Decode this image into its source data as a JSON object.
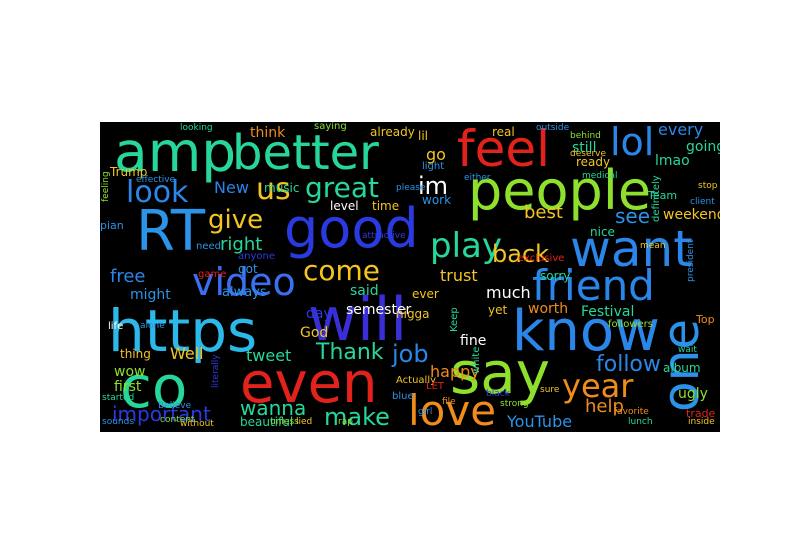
{
  "words": [
    {
      "text": "amp",
      "color": "#27d79a"
    },
    {
      "text": "better",
      "color": "#27d79a"
    },
    {
      "text": "feel",
      "color": "#e3221b"
    },
    {
      "text": "lol",
      "color": "#2a86e8"
    },
    {
      "text": "people",
      "color": "#8ee02c"
    },
    {
      "text": "good",
      "color": "#2b3ae0"
    },
    {
      "text": "RT",
      "color": "#2b93e8"
    },
    {
      "text": "want",
      "color": "#2a86e8"
    },
    {
      "text": "look",
      "color": "#2a86e8"
    },
    {
      "text": "us",
      "color": "#f2c522"
    },
    {
      "text": "great",
      "color": "#27d79a"
    },
    {
      "text": "im",
      "color": "#ffffff"
    },
    {
      "text": "give",
      "color": "#f2c522"
    },
    {
      "text": "play",
      "color": "#27d79a"
    },
    {
      "text": "video",
      "color": "#3b6ef0"
    },
    {
      "text": "friend",
      "color": "#2a86e8"
    },
    {
      "text": "come",
      "color": "#f2c522"
    },
    {
      "text": "back",
      "color": "#f2c522"
    },
    {
      "text": "https",
      "color": "#2cb8e8"
    },
    {
      "text": "will",
      "color": "#3a2fd6"
    },
    {
      "text": "know",
      "color": "#2a86e8"
    },
    {
      "text": "one",
      "color": "#2b93e8"
    },
    {
      "text": "co",
      "color": "#27d79a"
    },
    {
      "text": "even",
      "color": "#e3221b"
    },
    {
      "text": "say",
      "color": "#8ee02c"
    },
    {
      "text": "love",
      "color": "#f08c1c"
    },
    {
      "text": "year",
      "color": "#f08c1c"
    },
    {
      "text": "job",
      "color": "#2a86e8"
    },
    {
      "text": "Thank",
      "color": "#27d79a"
    },
    {
      "text": "make",
      "color": "#27d79a"
    },
    {
      "text": "wanna",
      "color": "#27d79a"
    },
    {
      "text": "important",
      "color": "#2b3ae0"
    },
    {
      "text": "follow",
      "color": "#2a86e8"
    },
    {
      "text": "help",
      "color": "#f08c1c"
    },
    {
      "text": "happy",
      "color": "#f08c1c"
    },
    {
      "text": "YouTube",
      "color": "#2b93e8"
    },
    {
      "text": "free",
      "color": "#2a86e8"
    },
    {
      "text": "right",
      "color": "#27d79a"
    },
    {
      "text": "said",
      "color": "#27d79a"
    },
    {
      "text": "much",
      "color": "#ffffff"
    },
    {
      "text": "see",
      "color": "#2b93e8"
    },
    {
      "text": "best",
      "color": "#f2c522"
    },
    {
      "text": "trust",
      "color": "#f2c522"
    },
    {
      "text": "New",
      "color": "#2a86e8"
    },
    {
      "text": "go",
      "color": "#f2c522"
    },
    {
      "text": "think",
      "color": "#f08c1c"
    },
    {
      "text": "already",
      "color": "#f2c522"
    },
    {
      "text": "still",
      "color": "#27d79a"
    },
    {
      "text": "every",
      "color": "#2a86e8"
    },
    {
      "text": "going",
      "color": "#27d79a"
    },
    {
      "text": "lmao",
      "color": "#27d79a"
    },
    {
      "text": "Festival",
      "color": "#27d79a"
    },
    {
      "text": "worth",
      "color": "#f08c1c"
    },
    {
      "text": "weekend",
      "color": "#f2c522"
    },
    {
      "text": "semester",
      "color": "#ffffff"
    },
    {
      "text": "Well",
      "color": "#f2c522"
    },
    {
      "text": "tweet",
      "color": "#27d79a"
    },
    {
      "text": "thing",
      "color": "#f2c522"
    },
    {
      "text": "wow",
      "color": "#8ee02c"
    },
    {
      "text": "first",
      "color": "#8ee02c"
    },
    {
      "text": "always",
      "color": "#2b93e8"
    },
    {
      "text": "might",
      "color": "#2b93e8"
    },
    {
      "text": "day",
      "color": "#2b3ae0"
    },
    {
      "text": "God",
      "color": "#f2c522"
    },
    {
      "text": "beautiful",
      "color": "#27d79a"
    },
    {
      "text": "fine",
      "color": "#ffffff"
    },
    {
      "text": "yet",
      "color": "#f2c522"
    },
    {
      "text": "album",
      "color": "#27d79a"
    },
    {
      "text": "ugly",
      "color": "#8ee02c"
    },
    {
      "text": "Top",
      "color": "#f08c1c"
    },
    {
      "text": "trade",
      "color": "#e3221b"
    },
    {
      "text": "sorry",
      "color": "#27d79a"
    },
    {
      "text": "ever",
      "color": "#f2c522"
    },
    {
      "text": "nigga",
      "color": "#f2c522"
    },
    {
      "text": "exclusive",
      "color": "#e3221b"
    },
    {
      "text": "nice",
      "color": "#27d79a"
    },
    {
      "text": "got",
      "color": "#2b93e8"
    },
    {
      "text": "music",
      "color": "#27d79a"
    },
    {
      "text": "level",
      "color": "#ffffff"
    },
    {
      "text": "time",
      "color": "#f2c522"
    },
    {
      "text": "work",
      "color": "#2b93e8"
    },
    {
      "text": "real",
      "color": "#f2c522"
    },
    {
      "text": "ready",
      "color": "#f2c522"
    },
    {
      "text": "lil",
      "color": "#f2c522"
    },
    {
      "text": "light",
      "color": "#2b93e8"
    },
    {
      "text": "Trump",
      "color": "#f2c522"
    },
    {
      "text": "Keep",
      "color": "#27d79a"
    },
    {
      "text": "white",
      "color": "#27d79a"
    },
    {
      "text": "anyone",
      "color": "#2b3ae0"
    },
    {
      "text": "pian",
      "color": "#2b93e8"
    },
    {
      "text": "need",
      "color": "#2b93e8"
    },
    {
      "text": "game",
      "color": "#e3221b"
    },
    {
      "text": "Team",
      "color": "#27d79a"
    },
    {
      "text": "blue",
      "color": "#2b93e8"
    },
    {
      "text": "Actually",
      "color": "#f2c522"
    },
    {
      "text": "saying",
      "color": "#8ee02c"
    },
    {
      "text": "definitely",
      "color": "#27d79a"
    },
    {
      "text": "president",
      "color": "#2b93e8"
    },
    {
      "text": "followers",
      "color": "#8ee02c"
    },
    {
      "text": "lunch",
      "color": "#27d79a"
    },
    {
      "text": "favorite",
      "color": "#f08c1c"
    },
    {
      "text": "literally",
      "color": "#2b3ae0"
    },
    {
      "text": "without",
      "color": "#f2c522"
    },
    {
      "text": "life",
      "color": "#ffffff"
    },
    {
      "text": "medical",
      "color": "#27d79a"
    },
    {
      "text": "outside",
      "color": "#2b93e8"
    },
    {
      "text": "deserve",
      "color": "#f2c522"
    },
    {
      "text": "feeling",
      "color": "#8ee02c"
    },
    {
      "text": "either",
      "color": "#2b93e8"
    },
    {
      "text": "please",
      "color": "#2b93e8"
    },
    {
      "text": "girl",
      "color": "#2b93e8"
    },
    {
      "text": "file",
      "color": "#f08c1c"
    },
    {
      "text": "behind",
      "color": "#8ee02c"
    },
    {
      "text": "stop",
      "color": "#f2c522"
    },
    {
      "text": "client",
      "color": "#2b93e8"
    },
    {
      "text": "attractive",
      "color": "#2b3ae0"
    },
    {
      "text": "effective",
      "color": "#2b93e8"
    },
    {
      "text": "content",
      "color": "#8ee02c"
    },
    {
      "text": "started",
      "color": "#27d79a"
    },
    {
      "text": "sounds",
      "color": "#2b93e8"
    },
    {
      "text": "unless",
      "color": "#8ee02c"
    },
    {
      "text": "sure",
      "color": "#f2c522"
    },
    {
      "text": "wait",
      "color": "#27d79a"
    },
    {
      "text": "black",
      "color": "#2b3ae0"
    },
    {
      "text": "inside",
      "color": "#f2c522"
    },
    {
      "text": "lied",
      "color": "#f2c522"
    },
    {
      "text": "Believe",
      "color": "#2b93e8"
    },
    {
      "text": "strong",
      "color": "#8ee02c"
    },
    {
      "text": "mean",
      "color": "#f2c522"
    },
    {
      "text": "looking",
      "color": "#27d79a"
    },
    {
      "text": "alone",
      "color": "#2b93e8"
    },
    {
      "text": "LET",
      "color": "#e3221b"
    },
    {
      "text": "rap",
      "color": "#8ee02c"
    }
  ]
}
